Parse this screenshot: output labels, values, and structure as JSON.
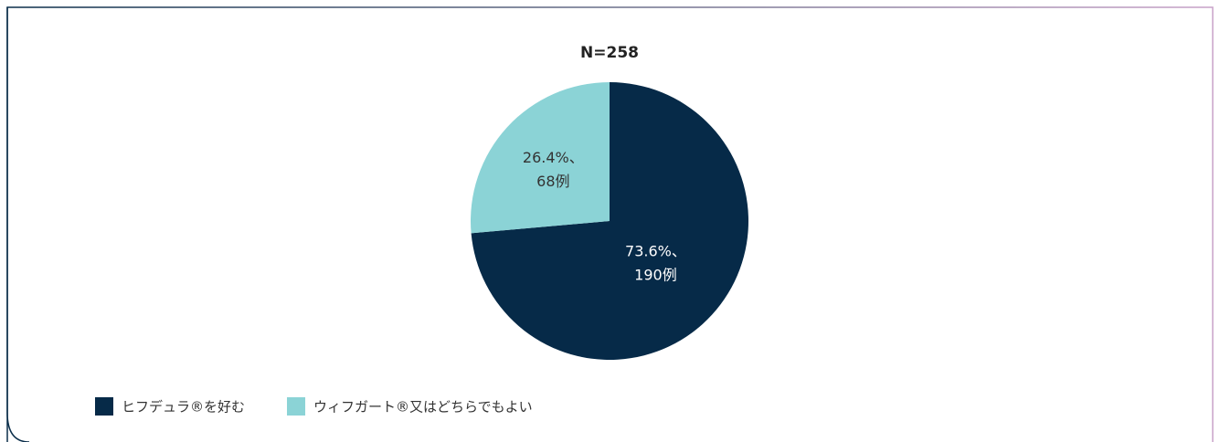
{
  "chart_data": {
    "type": "pie",
    "title": "N=258",
    "categories": [
      "ヒフデュラ®を好む",
      "ウィフガート®又はどちらでもよい"
    ],
    "values": [
      73.6,
      26.4
    ],
    "value_labels": [
      "73.6%、",
      "26.4%、"
    ],
    "count_labels": [
      "190例",
      "68例"
    ],
    "colors": [
      "#062a48",
      "#8bd3d6"
    ],
    "label_colors": [
      "#ffffff",
      "#333333"
    ],
    "legend": "bottom-left"
  }
}
